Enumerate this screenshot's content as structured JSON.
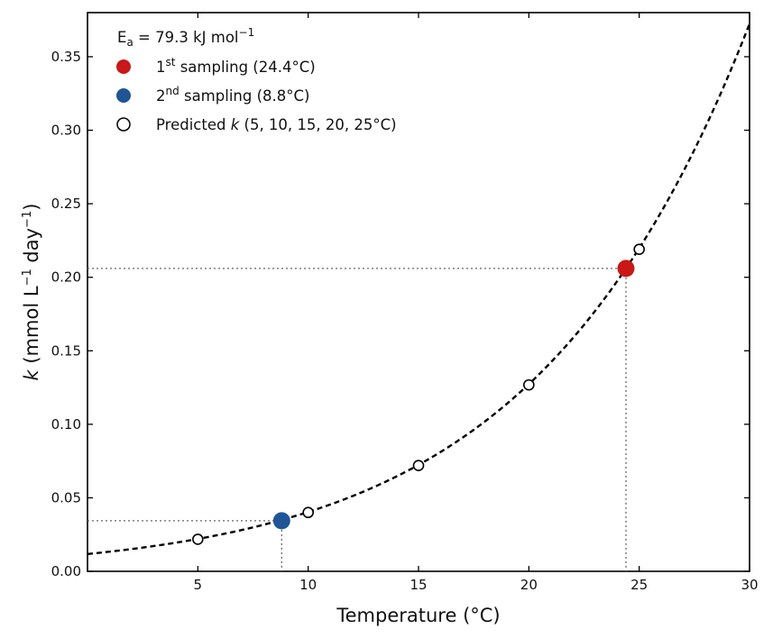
{
  "chart_data": {
    "type": "line",
    "title": "",
    "xlabel": "Temperature (°C)",
    "ylabel": {
      "italic": "k",
      "pre": " (mmol L",
      "sup1": "−1",
      "mid": " day",
      "sup2": "−1",
      "post": ")"
    },
    "xlim": [
      0,
      30
    ],
    "ylim": [
      0,
      0.38
    ],
    "xticks": [
      5,
      10,
      15,
      20,
      25,
      30
    ],
    "yticks": [
      0.0,
      0.05,
      0.1,
      0.15,
      0.2,
      0.25,
      0.3,
      0.35
    ],
    "xtick_labels": [
      "5",
      "10",
      "15",
      "20",
      "25",
      "30"
    ],
    "ytick_labels": [
      "0.00",
      "0.05",
      "0.10",
      "0.15",
      "0.20",
      "0.25",
      "0.30",
      "0.35"
    ],
    "grid": false,
    "legend_position": "top-left",
    "model": {
      "type": "arrhenius",
      "Ea_kJ_per_mol": 79.3,
      "reference_temperature_C": 24.4,
      "reference_k": 0.206
    },
    "series": [
      {
        "style": "dashed-line",
        "color": "#000000",
        "x": [
          0,
          5,
          8.8,
          10,
          15,
          20,
          24.4,
          25,
          30
        ],
        "y": [
          0.0117,
          0.0218,
          0.0344,
          0.04,
          0.072,
          0.1268,
          0.206,
          0.219,
          0.371
        ]
      },
      {
        "name": "2nd sampling (8.8°C)",
        "style": "filled-marker",
        "color": "#1f5595",
        "x": [
          8.8
        ],
        "y": [
          0.0344
        ]
      },
      {
        "name": "1st sampling (24.4°C)",
        "style": "filled-marker",
        "color": "#c81818",
        "x": [
          24.4
        ],
        "y": [
          0.206
        ]
      },
      {
        "name": "Predicted k (5, 10, 15, 20, 25°C)",
        "style": "open-marker",
        "color": "#000000",
        "x": [
          5,
          10,
          15,
          20,
          25
        ],
        "y": [
          0.0218,
          0.04,
          0.072,
          0.1268,
          0.219
        ]
      }
    ],
    "reference_lines": [
      {
        "x": 8.8,
        "y": 0.0344
      },
      {
        "x": 24.4,
        "y": 0.206
      }
    ],
    "legend": {
      "header": {
        "text": "E",
        "sub": "a",
        "text2": " = 79.3 kJ mol",
        "sup": "−1"
      },
      "items": [
        {
          "key": "first",
          "color": "#c81818",
          "marker": "filled",
          "pre": "1",
          "sup": "st",
          "text": " sampling (24.4°C)"
        },
        {
          "key": "second",
          "color": "#1f5595",
          "marker": "filled",
          "pre": "2",
          "sup": "nd",
          "text": " sampling (8.8°C)"
        },
        {
          "key": "predicted",
          "color": "#000000",
          "marker": "open",
          "pre": "Predicted ",
          "italic": "k",
          "text": " (5, 10, 15, 20, 25°C)"
        }
      ]
    }
  }
}
